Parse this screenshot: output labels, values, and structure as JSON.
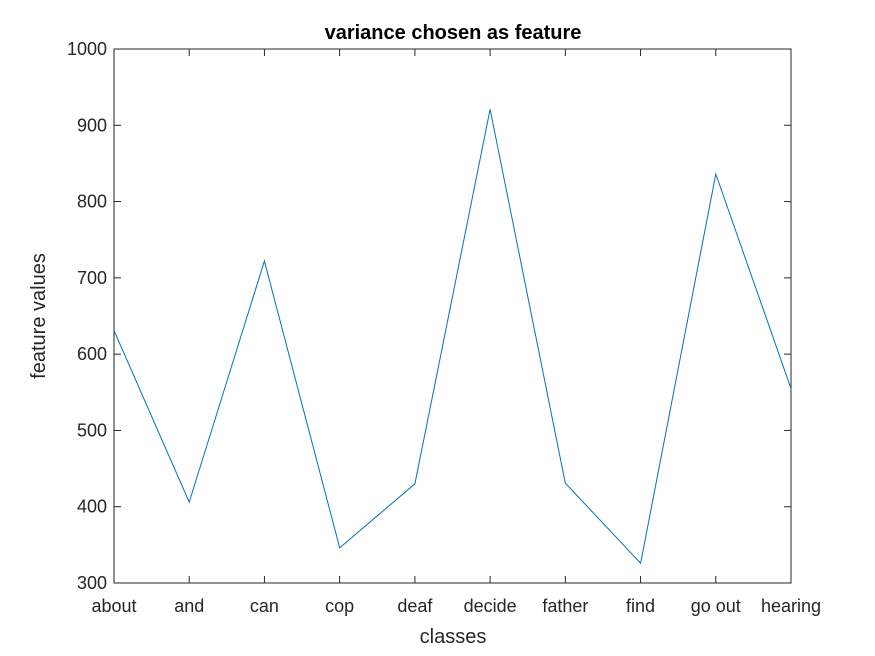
{
  "chart_data": {
    "type": "line",
    "title": "variance chosen as feature",
    "xlabel": "classes",
    "ylabel": "feature values",
    "categories": [
      "about",
      "and",
      "can",
      "cop",
      "deaf",
      "decide",
      "father",
      "find",
      "go out",
      "hearing"
    ],
    "series": [
      {
        "values": [
          631,
          406,
          722,
          346,
          430,
          921,
          431,
          326,
          836,
          555
        ],
        "color": "#0072BD"
      }
    ],
    "ylim": [
      300,
      1000
    ],
    "yticks": [
      300,
      400,
      500,
      600,
      700,
      800,
      900,
      1000
    ],
    "grid": false,
    "box": true
  }
}
